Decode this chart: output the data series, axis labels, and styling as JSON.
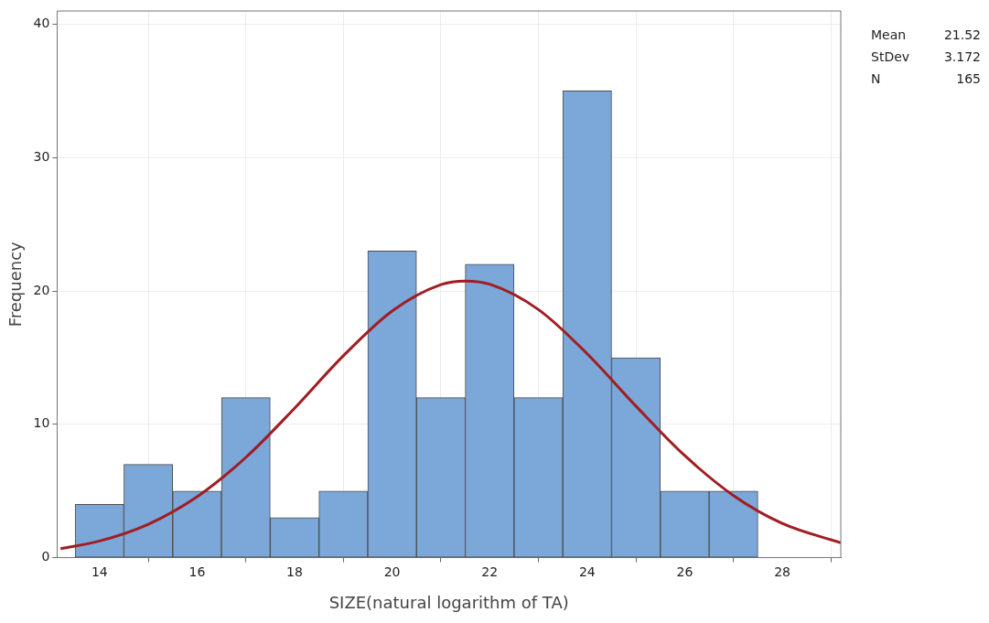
{
  "chart_data": {
    "type": "histogram",
    "xlabel": "SIZE(natural logarithm of TA)",
    "ylabel": "Frequency",
    "bins": [
      13.5,
      14.5,
      15.5,
      16.5,
      17.5,
      18.5,
      19.5,
      20.5,
      21.5,
      22.5,
      23.5,
      24.5,
      25.5,
      26.5,
      27.5
    ],
    "values": [
      4,
      7,
      5,
      12,
      3,
      5,
      23,
      12,
      22,
      12,
      35,
      15,
      5,
      5
    ],
    "color": "#7ba7d9",
    "series": [
      {
        "type": "line",
        "color": "#a11d21",
        "x": [
          13.2,
          14,
          15,
          16,
          17,
          18,
          19,
          20,
          21,
          21.5,
          22,
          23,
          24,
          25,
          26,
          27,
          28,
          29.2
        ],
        "values": [
          0.67,
          1.25,
          2.51,
          4.57,
          7.52,
          11.21,
          15.14,
          18.5,
          20.48,
          20.75,
          20.51,
          18.61,
          15.29,
          11.37,
          7.66,
          4.66,
          2.57,
          1.11
        ]
      }
    ],
    "xlim": [
      13.13,
      29.2
    ],
    "xticks": [
      14,
      16,
      18,
      20,
      22,
      24,
      26,
      28
    ],
    "ylim": [
      0,
      41
    ],
    "yticks": [
      0,
      10,
      20,
      30,
      40
    ],
    "grid": true,
    "legend": false,
    "annotations": [
      "Mean 21.52",
      "StDev 3.172",
      "N 165"
    ]
  }
}
